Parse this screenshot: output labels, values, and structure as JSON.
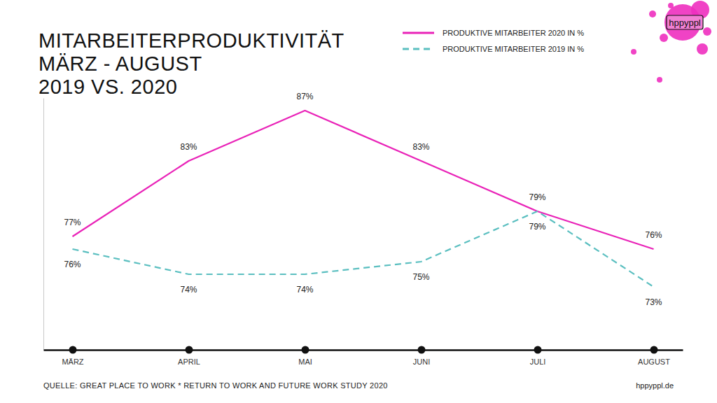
{
  "chart_data": {
    "type": "line",
    "title": "MITARBEITERPRODUKTIVITÄT\nMÄRZ - AUGUST\n2019 VS. 2020",
    "categories": [
      "MÄRZ",
      "APRIL",
      "MAI",
      "JUNI",
      "JULI",
      "AUGUST"
    ],
    "series": [
      {
        "name": "PRODUKTIVE MITARBEITER 2020 IN %",
        "color": "#e923b8",
        "line_style": "solid",
        "values": [
          77,
          83,
          87,
          83,
          79,
          76
        ],
        "value_labels": [
          "77%",
          "83%",
          "87%",
          "83%",
          "79%",
          "76%"
        ]
      },
      {
        "name": "PRODUKTIVE MITARBEITER 2019 IN %",
        "color": "#5bbfc0",
        "line_style": "dashed",
        "values": [
          76,
          74,
          74,
          75,
          79,
          73
        ],
        "value_labels": [
          "76%",
          "74%",
          "74%",
          "75%",
          "79%",
          "73%"
        ]
      }
    ],
    "ylim": [
      68,
      88
    ],
    "yticks": [],
    "grid": false,
    "legend": "top-right",
    "data_labels": true,
    "tick_labels": "x",
    "source": "QUELLE: GREAT PLACE TO WORK * RETURN TO WORK AND FUTURE WORK STUDY 2020",
    "website": "hppyppl.de",
    "logo": "hppyppl"
  }
}
